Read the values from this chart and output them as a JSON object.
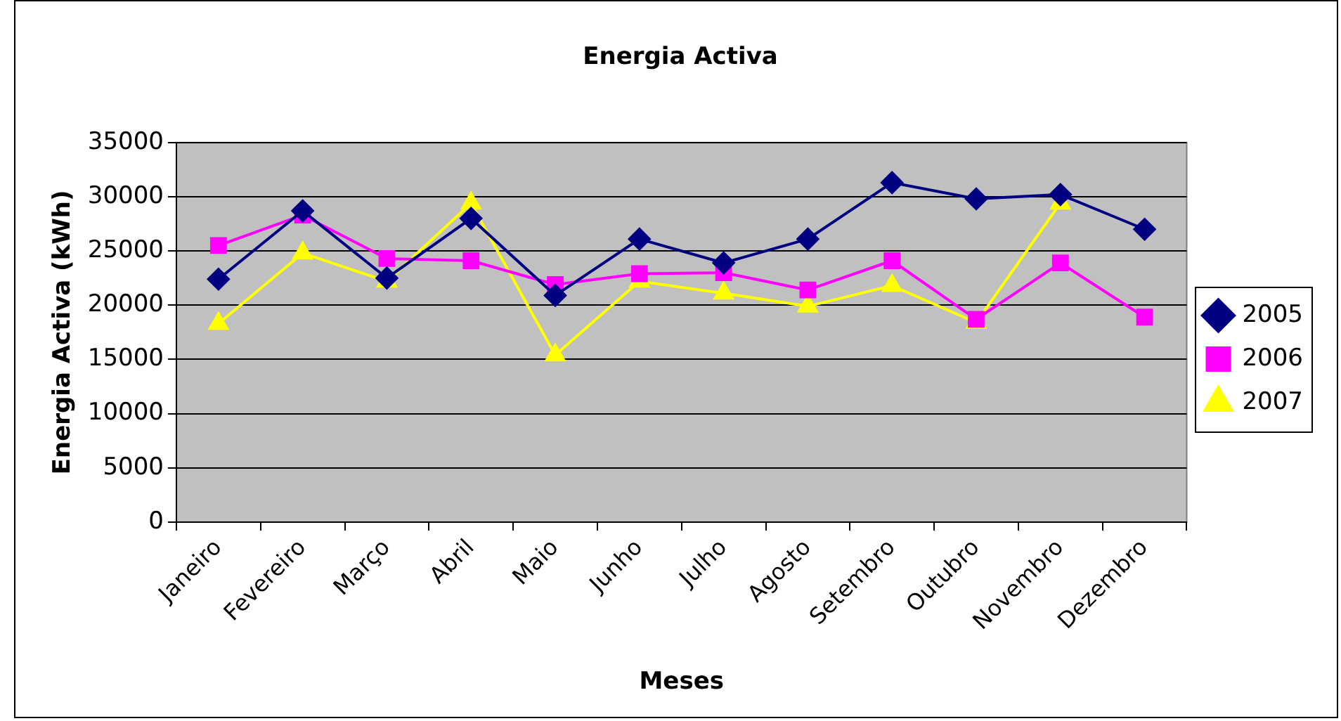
{
  "chart_data": {
    "type": "line",
    "title": "Energia Activa",
    "xlabel": "Meses",
    "ylabel": "Energia Activa (kWh)",
    "categories": [
      "Janeiro",
      "Fevereiro",
      "Março",
      "Abril",
      "Maio",
      "Junho",
      "Julho",
      "Agosto",
      "Setembro",
      "Outubro",
      "Novembro",
      "Dezembro"
    ],
    "series": [
      {
        "name": "2005",
        "color": "#000080",
        "marker": "diamond",
        "values": [
          22400,
          28700,
          22500,
          28000,
          20900,
          26100,
          23900,
          26100,
          31300,
          29800,
          30200,
          27000
        ]
      },
      {
        "name": "2006",
        "color": "#ff00ff",
        "marker": "square",
        "values": [
          25500,
          28300,
          24300,
          24100,
          21900,
          22900,
          23000,
          21400,
          24100,
          18700,
          23900,
          18900
        ]
      },
      {
        "name": "2007",
        "color": "#ffff00",
        "marker": "triangle",
        "values": [
          18300,
          24800,
          22200,
          29400,
          15400,
          22200,
          21100,
          19900,
          21800,
          18400,
          29400,
          null
        ]
      }
    ],
    "ylim": [
      0,
      35000
    ],
    "yticks": [
      0,
      5000,
      10000,
      15000,
      20000,
      25000,
      30000,
      35000
    ],
    "grid": "y",
    "legend": "right"
  }
}
